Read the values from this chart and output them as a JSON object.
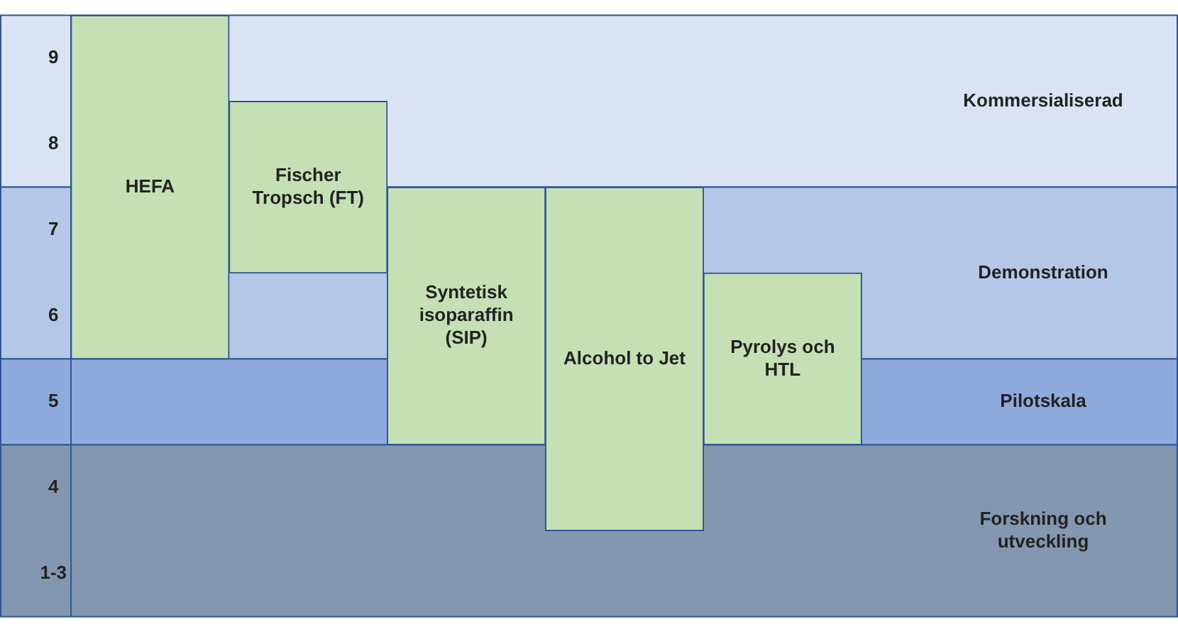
{
  "chart_data": {
    "type": "bar",
    "categories": [
      "HEFA",
      "Fischer Tropsch (FT)",
      "Syntetisk isoparaffin (SIP)",
      "Alcohol to Jet",
      "Pyrolys och HTL",
      null,
      null
    ],
    "values": [
      4,
      2,
      3,
      4,
      2,
      null,
      null
    ],
    "base": [
      5.5,
      6.5,
      4.5,
      3.5,
      4.5,
      null,
      null
    ],
    "color": "#c5e0b4",
    "ylim": [
      2.5,
      9.5
    ],
    "yticks": [
      {
        "value": 3,
        "label": "1-3"
      },
      4,
      5,
      6,
      7,
      8,
      9
    ],
    "bands": [
      {
        "axis": "y",
        "from": 7.5,
        "to": 9.5,
        "label": "Kommersialiserad",
        "color": "#dae3f3"
      },
      {
        "axis": "y",
        "from": 5.5,
        "to": 7.5,
        "label": "Demonstration",
        "color": "#b4c7e7"
      },
      {
        "axis": "y",
        "from": 4.5,
        "to": 5.5,
        "label": "Pilotskala",
        "color": "#8faadc"
      },
      {
        "axis": "y",
        "from": 2.5,
        "to": 4.5,
        "label": "Forskning och utveckling",
        "color": "#8497b0"
      }
    ],
    "tick_labels": "y",
    "legend": false
  }
}
